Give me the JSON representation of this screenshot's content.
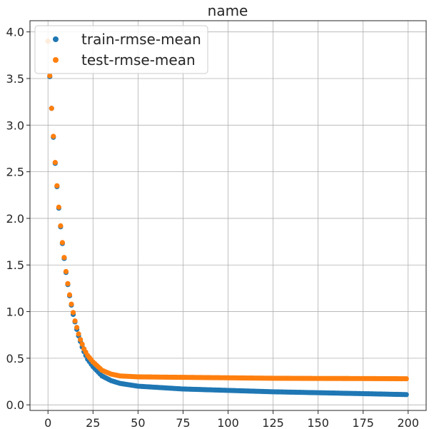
{
  "chart_data": {
    "type": "scatter",
    "title": "name",
    "xlabel": "",
    "ylabel": "",
    "xlim": [
      -10,
      210
    ],
    "ylim": [
      -0.06,
      4.12
    ],
    "x_ticks": [
      0,
      25,
      50,
      75,
      100,
      125,
      150,
      175,
      200
    ],
    "y_ticks": [
      0.0,
      0.5,
      1.0,
      1.5,
      2.0,
      2.5,
      3.0,
      3.5,
      4.0
    ],
    "x_tick_labels": [
      "0",
      "25",
      "50",
      "75",
      "100",
      "125",
      "150",
      "175",
      "200"
    ],
    "y_tick_labels": [
      "0.0",
      "0.5",
      "1.0",
      "1.5",
      "2.0",
      "2.5",
      "3.0",
      "3.5",
      "4.0"
    ],
    "grid": true,
    "legend_position": "top-left",
    "x_range": [
      0,
      199
    ],
    "series": [
      {
        "name": "train-rmse-mean",
        "color": "#1f77b4",
        "anchors": [
          [
            0,
            3.9
          ],
          [
            1,
            3.52
          ],
          [
            2,
            3.18
          ],
          [
            3,
            2.87
          ],
          [
            4,
            2.59
          ],
          [
            5,
            2.34
          ],
          [
            6,
            2.11
          ],
          [
            7,
            1.91
          ],
          [
            8,
            1.73
          ],
          [
            9,
            1.57
          ],
          [
            10,
            1.42
          ],
          [
            11,
            1.29
          ],
          [
            12,
            1.17
          ],
          [
            13,
            1.07
          ],
          [
            14,
            0.97
          ],
          [
            15,
            0.89
          ],
          [
            16,
            0.81
          ],
          [
            17,
            0.74
          ],
          [
            18,
            0.68
          ],
          [
            19,
            0.62
          ],
          [
            20,
            0.57
          ],
          [
            22,
            0.49
          ],
          [
            25,
            0.41
          ],
          [
            30,
            0.31
          ],
          [
            35,
            0.26
          ],
          [
            40,
            0.23
          ],
          [
            50,
            0.2
          ],
          [
            75,
            0.17
          ],
          [
            100,
            0.155
          ],
          [
            125,
            0.14
          ],
          [
            150,
            0.13
          ],
          [
            175,
            0.12
          ],
          [
            199,
            0.11
          ]
        ]
      },
      {
        "name": "test-rmse-mean",
        "color": "#ff7f0e",
        "anchors": [
          [
            0,
            3.9
          ],
          [
            1,
            3.53
          ],
          [
            2,
            3.18
          ],
          [
            3,
            2.88
          ],
          [
            4,
            2.6
          ],
          [
            5,
            2.35
          ],
          [
            6,
            2.12
          ],
          [
            7,
            1.92
          ],
          [
            8,
            1.74
          ],
          [
            9,
            1.58
          ],
          [
            10,
            1.43
          ],
          [
            11,
            1.3
          ],
          [
            12,
            1.18
          ],
          [
            13,
            1.08
          ],
          [
            14,
            0.99
          ],
          [
            15,
            0.9
          ],
          [
            16,
            0.83
          ],
          [
            17,
            0.76
          ],
          [
            18,
            0.7
          ],
          [
            19,
            0.65
          ],
          [
            20,
            0.6
          ],
          [
            22,
            0.53
          ],
          [
            25,
            0.46
          ],
          [
            30,
            0.37
          ],
          [
            35,
            0.33
          ],
          [
            40,
            0.31
          ],
          [
            50,
            0.3
          ],
          [
            75,
            0.295
          ],
          [
            100,
            0.29
          ],
          [
            125,
            0.285
          ],
          [
            150,
            0.283
          ],
          [
            175,
            0.282
          ],
          [
            199,
            0.28
          ]
        ]
      }
    ]
  }
}
